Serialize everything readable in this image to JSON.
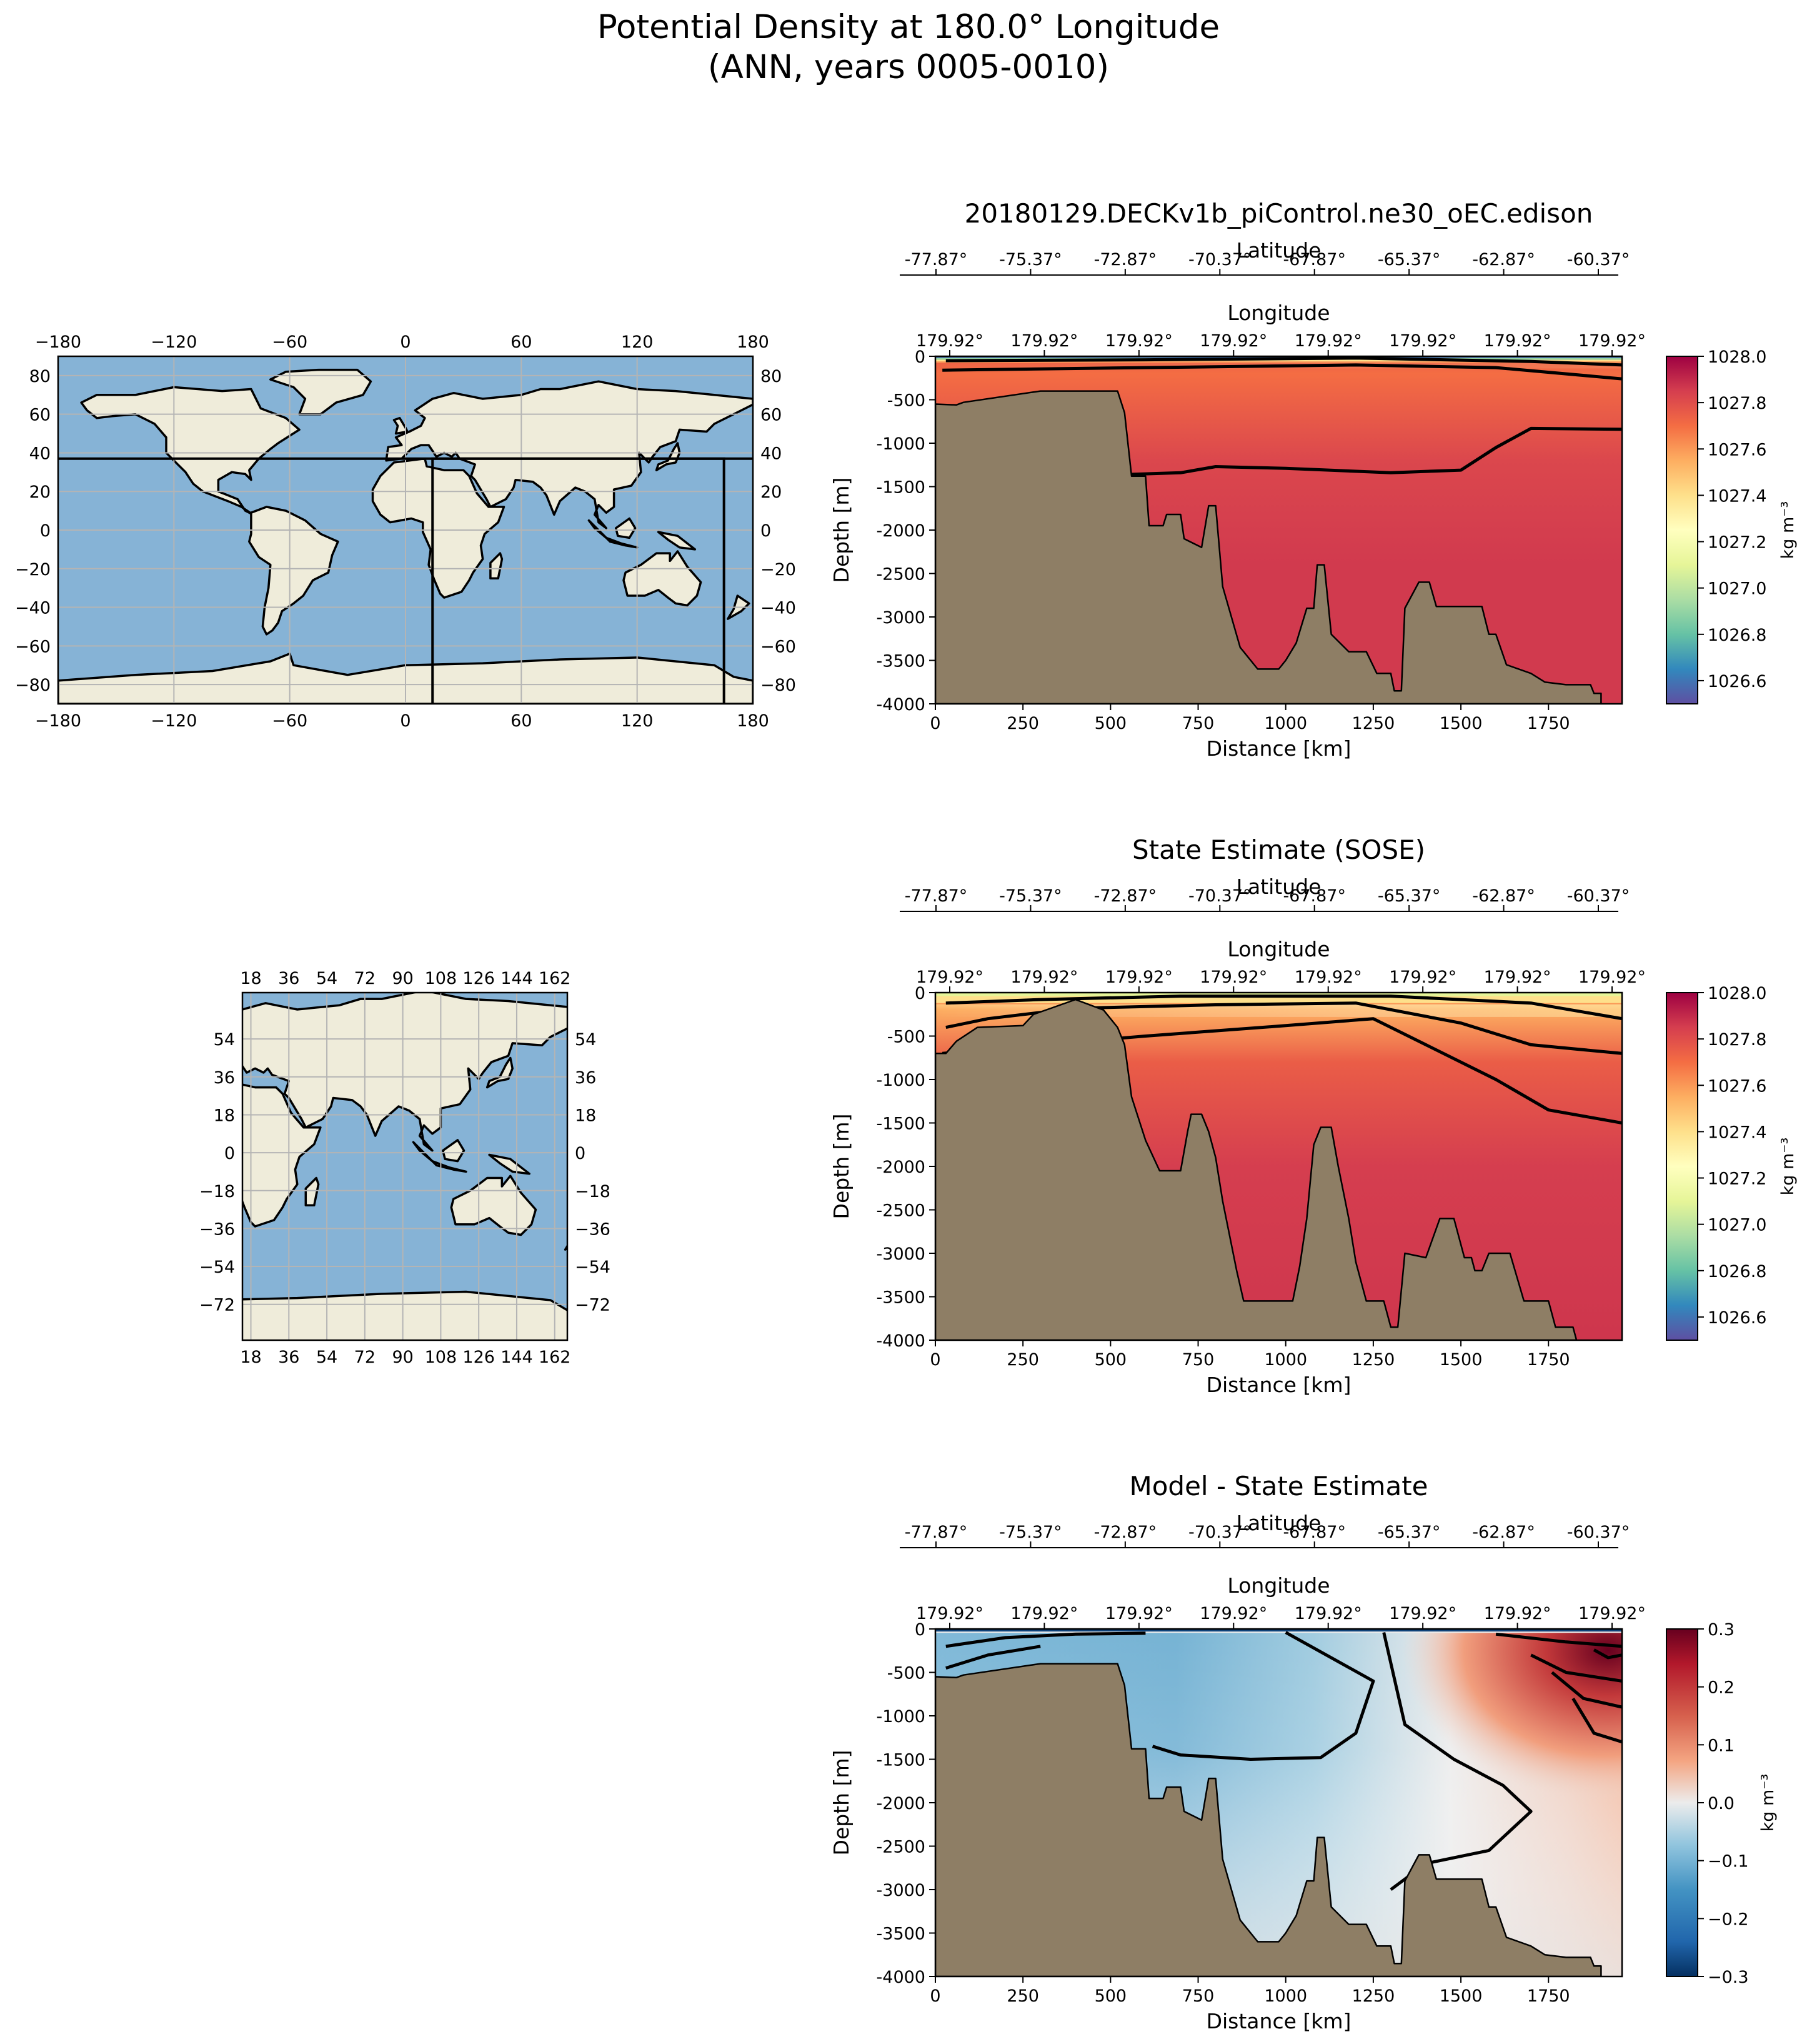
{
  "figure": {
    "title_line1": "Potential Density at 180.0° Longitude",
    "title_line2": "(ANN, years 0005-0010)"
  },
  "colors": {
    "land": "#8e7e65",
    "contour": "#000000",
    "map_ocean": "#86b3d6",
    "map_land": "#efecda",
    "map_grid": "#b4b4b4"
  },
  "maps": [
    {
      "name": "global-map",
      "lon_ticks": [
        "−180",
        "−120",
        "−60",
        "0",
        "60",
        "120",
        "180"
      ],
      "lat_ticks": [
        "80",
        "60",
        "40",
        "20",
        "0",
        "−20",
        "−40",
        "−60",
        "−80"
      ]
    },
    {
      "name": "regional-map",
      "lon_ticks": [
        "18",
        "36",
        "54",
        "72",
        "90",
        "108",
        "126",
        "144",
        "162"
      ],
      "lat_ticks": [
        "54",
        "36",
        "18",
        "0",
        "−18",
        "−36",
        "−54",
        "−72"
      ]
    }
  ],
  "chart_data": [
    {
      "type": "heatmap",
      "title": "20180129.DECKv1b_piControl.ne30_oEC.edison",
      "xlabel": "Distance [km]",
      "ylabel": "Depth [m]",
      "top_label_lat": "Latitude",
      "top_label_lon": "Longitude",
      "lat_ticks": [
        "-77.87°",
        "-75.37°",
        "-72.87°",
        "-70.37°",
        "-67.87°",
        "-65.37°",
        "-62.87°",
        "-60.37°"
      ],
      "lon_ticks": [
        "179.92°",
        "179.92°",
        "179.92°",
        "179.92°",
        "179.92°",
        "179.92°",
        "179.92°",
        "179.92°"
      ],
      "x_ticks": [
        0,
        250,
        500,
        750,
        1000,
        1250,
        1500,
        1750
      ],
      "y_ticks": [
        0,
        -500,
        -1000,
        -1500,
        -2000,
        -2500,
        -3000,
        -3500,
        -4000
      ],
      "xlim": [
        0,
        1960
      ],
      "ylim": [
        -4000,
        0
      ],
      "colorbar": {
        "label": "kg m⁻³",
        "cmap": "spectral",
        "range": [
          1026.5,
          1028.0
        ],
        "ticks": [
          "1028.0",
          "1027.8",
          "1027.6",
          "1027.4",
          "1027.2",
          "1027.0",
          "1026.8",
          "1026.6"
        ]
      },
      "field_stops": [
        [
          0,
          1027.75
        ],
        [
          0.05,
          1027.7
        ],
        [
          0.3,
          1027.82
        ],
        [
          0.6,
          1027.86
        ],
        [
          1,
          1027.86
        ]
      ],
      "surface_band": [
        [
          0,
          1026.6
        ],
        [
          20,
          1026.9
        ],
        [
          40,
          1027.4
        ],
        [
          60,
          1027.6
        ]
      ],
      "contours": [
        [
          [
            30,
            -50
          ],
          [
            600,
            -40
          ],
          [
            1200,
            -20
          ],
          [
            1700,
            -60
          ],
          [
            1960,
            -100
          ]
        ],
        [
          [
            20,
            -160
          ],
          [
            400,
            -140
          ],
          [
            800,
            -120
          ],
          [
            1200,
            -100
          ],
          [
            1600,
            -130
          ],
          [
            1960,
            -260
          ]
        ],
        [
          [
            550,
            -1360
          ],
          [
            700,
            -1340
          ],
          [
            800,
            -1270
          ],
          [
            1000,
            -1290
          ],
          [
            1300,
            -1340
          ],
          [
            1500,
            -1310
          ],
          [
            1600,
            -1050
          ],
          [
            1700,
            -830
          ],
          [
            1960,
            -840
          ]
        ]
      ],
      "bathymetry": [
        [
          0,
          -4000
        ],
        [
          0,
          -550
        ],
        [
          60,
          -560
        ],
        [
          80,
          -530
        ],
        [
          300,
          -400
        ],
        [
          520,
          -400
        ],
        [
          540,
          -650
        ],
        [
          560,
          -1380
        ],
        [
          600,
          -1380
        ],
        [
          610,
          -1950
        ],
        [
          650,
          -1950
        ],
        [
          660,
          -1820
        ],
        [
          700,
          -1820
        ],
        [
          710,
          -2100
        ],
        [
          760,
          -2200
        ],
        [
          780,
          -1720
        ],
        [
          800,
          -1720
        ],
        [
          820,
          -2650
        ],
        [
          870,
          -3350
        ],
        [
          920,
          -3600
        ],
        [
          980,
          -3600
        ],
        [
          1000,
          -3500
        ],
        [
          1030,
          -3300
        ],
        [
          1060,
          -2900
        ],
        [
          1080,
          -2900
        ],
        [
          1090,
          -2400
        ],
        [
          1110,
          -2400
        ],
        [
          1130,
          -3200
        ],
        [
          1180,
          -3400
        ],
        [
          1230,
          -3400
        ],
        [
          1260,
          -3650
        ],
        [
          1300,
          -3650
        ],
        [
          1310,
          -3850
        ],
        [
          1330,
          -3850
        ],
        [
          1340,
          -2900
        ],
        [
          1380,
          -2600
        ],
        [
          1410,
          -2600
        ],
        [
          1430,
          -2880
        ],
        [
          1560,
          -2880
        ],
        [
          1580,
          -3200
        ],
        [
          1600,
          -3200
        ],
        [
          1630,
          -3550
        ],
        [
          1700,
          -3650
        ],
        [
          1740,
          -3750
        ],
        [
          1800,
          -3780
        ],
        [
          1870,
          -3780
        ],
        [
          1880,
          -3880
        ],
        [
          1900,
          -3880
        ],
        [
          1900,
          -4000
        ]
      ]
    },
    {
      "type": "heatmap",
      "title": "State Estimate (SOSE)",
      "xlabel": "Distance [km]",
      "ylabel": "Depth [m]",
      "top_label_lat": "Latitude",
      "top_label_lon": "Longitude",
      "lat_ticks": [
        "-77.87°",
        "-75.37°",
        "-72.87°",
        "-70.37°",
        "-67.87°",
        "-65.37°",
        "-62.87°",
        "-60.37°"
      ],
      "lon_ticks": [
        "179.92°",
        "179.92°",
        "179.92°",
        "179.92°",
        "179.92°",
        "179.92°",
        "179.92°",
        "179.92°"
      ],
      "x_ticks": [
        0,
        250,
        500,
        750,
        1000,
        1250,
        1500,
        1750
      ],
      "y_ticks": [
        0,
        -500,
        -1000,
        -1500,
        -2000,
        -2500,
        -3000,
        -3500,
        -4000
      ],
      "xlim": [
        0,
        1960
      ],
      "ylim": [
        -4000,
        0
      ],
      "colorbar": {
        "label": "kg m⁻³",
        "cmap": "spectral",
        "range": [
          1026.5,
          1028.0
        ],
        "ticks": [
          "1028.0",
          "1027.8",
          "1027.6",
          "1027.4",
          "1027.2",
          "1027.0",
          "1026.8",
          "1026.6"
        ]
      },
      "field_stops": [
        [
          0,
          1027.3
        ],
        [
          0.05,
          1027.55
        ],
        [
          0.2,
          1027.75
        ],
        [
          0.5,
          1027.85
        ],
        [
          1,
          1027.87
        ]
      ],
      "surface_band": [
        [
          0,
          1027.1
        ],
        [
          40,
          1027.4
        ],
        [
          120,
          1027.6
        ]
      ],
      "contours": [
        [
          [
            30,
            -120
          ],
          [
            300,
            -80
          ],
          [
            700,
            -40
          ],
          [
            1300,
            -40
          ],
          [
            1700,
            -120
          ],
          [
            1960,
            -300
          ]
        ],
        [
          [
            30,
            -400
          ],
          [
            150,
            -300
          ],
          [
            400,
            -180
          ],
          [
            800,
            -140
          ],
          [
            1200,
            -120
          ],
          [
            1500,
            -350
          ],
          [
            1700,
            -600
          ],
          [
            1960,
            -700
          ]
        ],
        [
          [
            20,
            -700
          ],
          [
            300,
            -600
          ],
          [
            600,
            -500
          ],
          [
            1000,
            -380
          ],
          [
            1250,
            -300
          ],
          [
            1400,
            -600
          ],
          [
            1600,
            -1000
          ],
          [
            1750,
            -1350
          ],
          [
            1960,
            -1500
          ]
        ]
      ],
      "bathymetry": [
        [
          0,
          -4000
        ],
        [
          0,
          -700
        ],
        [
          30,
          -700
        ],
        [
          60,
          -560
        ],
        [
          120,
          -400
        ],
        [
          250,
          -380
        ],
        [
          280,
          -250
        ],
        [
          330,
          -180
        ],
        [
          400,
          -80
        ],
        [
          480,
          -200
        ],
        [
          520,
          -400
        ],
        [
          540,
          -600
        ],
        [
          560,
          -1200
        ],
        [
          600,
          -1700
        ],
        [
          640,
          -2050
        ],
        [
          700,
          -2050
        ],
        [
          720,
          -1600
        ],
        [
          730,
          -1400
        ],
        [
          760,
          -1400
        ],
        [
          780,
          -1600
        ],
        [
          800,
          -1900
        ],
        [
          820,
          -2400
        ],
        [
          860,
          -3200
        ],
        [
          880,
          -3550
        ],
        [
          1020,
          -3550
        ],
        [
          1040,
          -3150
        ],
        [
          1060,
          -2600
        ],
        [
          1080,
          -1750
        ],
        [
          1100,
          -1550
        ],
        [
          1130,
          -1550
        ],
        [
          1150,
          -2000
        ],
        [
          1180,
          -2600
        ],
        [
          1200,
          -3100
        ],
        [
          1230,
          -3550
        ],
        [
          1280,
          -3550
        ],
        [
          1300,
          -3850
        ],
        [
          1320,
          -3850
        ],
        [
          1340,
          -3000
        ],
        [
          1400,
          -3050
        ],
        [
          1440,
          -2600
        ],
        [
          1480,
          -2600
        ],
        [
          1510,
          -3050
        ],
        [
          1530,
          -3050
        ],
        [
          1540,
          -3200
        ],
        [
          1560,
          -3200
        ],
        [
          1580,
          -3000
        ],
        [
          1640,
          -3000
        ],
        [
          1680,
          -3550
        ],
        [
          1750,
          -3550
        ],
        [
          1770,
          -3850
        ],
        [
          1820,
          -3850
        ],
        [
          1830,
          -4000
        ]
      ]
    },
    {
      "type": "heatmap",
      "title": "Model - State Estimate",
      "xlabel": "Distance [km]",
      "ylabel": "Depth [m]",
      "top_label_lat": "Latitude",
      "top_label_lon": "Longitude",
      "lat_ticks": [
        "-77.87°",
        "-75.37°",
        "-72.87°",
        "-70.37°",
        "-67.87°",
        "-65.37°",
        "-62.87°",
        "-60.37°"
      ],
      "lon_ticks": [
        "179.92°",
        "179.92°",
        "179.92°",
        "179.92°",
        "179.92°",
        "179.92°",
        "179.92°",
        "179.92°"
      ],
      "x_ticks": [
        0,
        250,
        500,
        750,
        1000,
        1250,
        1500,
        1750
      ],
      "y_ticks": [
        0,
        -500,
        -1000,
        -1500,
        -2000,
        -2500,
        -3000,
        -3500,
        -4000
      ],
      "xlim": [
        0,
        1960
      ],
      "ylim": [
        -4000,
        0
      ],
      "colorbar": {
        "label": "kg m⁻³",
        "cmap": "diverging",
        "range": [
          -0.3,
          0.3
        ],
        "ticks": [
          "0.3",
          "0.2",
          "0.1",
          "0.0",
          "−0.1",
          "−0.2",
          "−0.3"
        ]
      },
      "field_stops": [],
      "surface_band": [
        [
          0,
          -0.28
        ],
        [
          30,
          0.0
        ]
      ],
      "contours": [
        [
          [
            1280,
            -40
          ],
          [
            1340,
            -1100
          ],
          [
            1480,
            -1500
          ],
          [
            1620,
            -1800
          ],
          [
            1700,
            -2100
          ],
          [
            1580,
            -2550
          ],
          [
            1400,
            -2700
          ],
          [
            1300,
            -3000
          ]
        ],
        [
          [
            1000,
            -40
          ],
          [
            1250,
            -600
          ],
          [
            1200,
            -1200
          ],
          [
            1100,
            -1480
          ],
          [
            900,
            -1500
          ],
          [
            700,
            -1450
          ],
          [
            620,
            -1350
          ]
        ],
        [
          [
            1600,
            -60
          ],
          [
            1800,
            -150
          ],
          [
            1960,
            -200
          ]
        ],
        [
          [
            1700,
            -300
          ],
          [
            1800,
            -500
          ],
          [
            1960,
            -600
          ]
        ],
        [
          [
            1760,
            -500
          ],
          [
            1850,
            -800
          ],
          [
            1960,
            -900
          ]
        ],
        [
          [
            1820,
            -800
          ],
          [
            1880,
            -1200
          ],
          [
            1960,
            -1300
          ]
        ],
        [
          [
            1880,
            -240
          ],
          [
            1920,
            -330
          ],
          [
            1960,
            -300
          ]
        ],
        [
          [
            30,
            -200
          ],
          [
            200,
            -100
          ],
          [
            400,
            -60
          ],
          [
            600,
            -50
          ]
        ],
        [
          [
            30,
            -450
          ],
          [
            150,
            -300
          ],
          [
            300,
            -200
          ]
        ]
      ],
      "bathymetry": [
        [
          0,
          -4000
        ],
        [
          0,
          -550
        ],
        [
          60,
          -560
        ],
        [
          80,
          -530
        ],
        [
          300,
          -400
        ],
        [
          520,
          -400
        ],
        [
          540,
          -650
        ],
        [
          560,
          -1380
        ],
        [
          600,
          -1380
        ],
        [
          610,
          -1950
        ],
        [
          650,
          -1950
        ],
        [
          660,
          -1820
        ],
        [
          700,
          -1820
        ],
        [
          710,
          -2100
        ],
        [
          760,
          -2200
        ],
        [
          780,
          -1720
        ],
        [
          800,
          -1720
        ],
        [
          820,
          -2650
        ],
        [
          870,
          -3350
        ],
        [
          920,
          -3600
        ],
        [
          980,
          -3600
        ],
        [
          1000,
          -3500
        ],
        [
          1030,
          -3300
        ],
        [
          1060,
          -2900
        ],
        [
          1080,
          -2900
        ],
        [
          1090,
          -2400
        ],
        [
          1110,
          -2400
        ],
        [
          1130,
          -3200
        ],
        [
          1180,
          -3400
        ],
        [
          1230,
          -3400
        ],
        [
          1260,
          -3650
        ],
        [
          1300,
          -3650
        ],
        [
          1310,
          -3850
        ],
        [
          1330,
          -3850
        ],
        [
          1340,
          -2900
        ],
        [
          1380,
          -2600
        ],
        [
          1410,
          -2600
        ],
        [
          1430,
          -2880
        ],
        [
          1560,
          -2880
        ],
        [
          1580,
          -3200
        ],
        [
          1600,
          -3200
        ],
        [
          1630,
          -3550
        ],
        [
          1700,
          -3650
        ],
        [
          1740,
          -3750
        ],
        [
          1800,
          -3780
        ],
        [
          1870,
          -3780
        ],
        [
          1880,
          -3880
        ],
        [
          1900,
          -3880
        ],
        [
          1900,
          -4000
        ]
      ]
    }
  ]
}
